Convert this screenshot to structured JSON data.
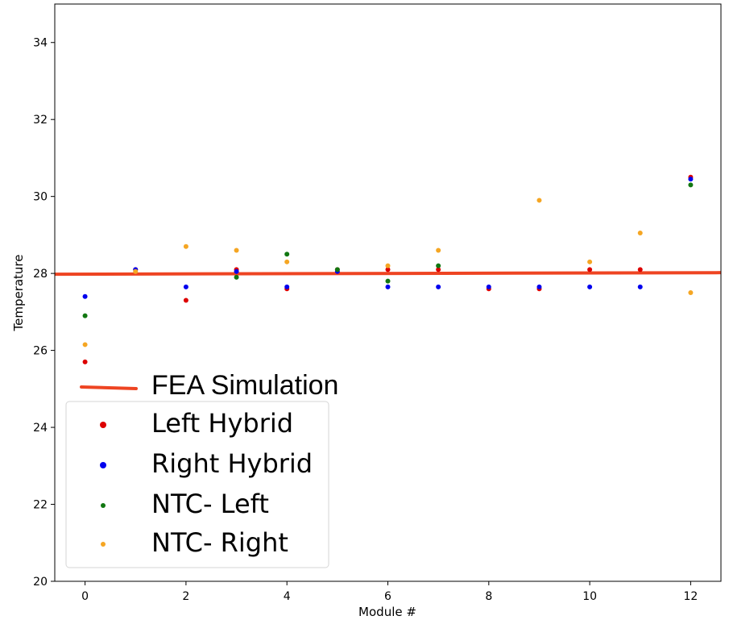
{
  "chart_data": {
    "type": "scatter",
    "xlabel": "Module #",
    "ylabel": "Temperature",
    "xlim": [
      -0.6,
      12.6
    ],
    "ylim": [
      20,
      35
    ],
    "xticks": [
      0,
      2,
      4,
      6,
      8,
      10,
      12
    ],
    "yticks": [
      20,
      22,
      24,
      26,
      28,
      30,
      32,
      34
    ],
    "grid": false,
    "legend_position": "lower-left",
    "line": {
      "name": "FEA Simulation",
      "color": "#ee4422",
      "x": [
        -0.6,
        12.6
      ],
      "y": [
        27.98,
        28.02
      ]
    },
    "series": [
      {
        "name": "Left Hybrid",
        "color": "#dd0000",
        "x": [
          0,
          1,
          2,
          3,
          4,
          5,
          6,
          7,
          8,
          9,
          10,
          11,
          12
        ],
        "y": [
          25.7,
          28.1,
          27.3,
          28.1,
          27.6,
          28.1,
          28.1,
          28.1,
          27.6,
          27.6,
          28.1,
          28.1,
          30.5
        ]
      },
      {
        "name": "Right Hybrid",
        "color": "#0000ee",
        "x": [
          0,
          1,
          2,
          3,
          4,
          5,
          6,
          7,
          8,
          9,
          10,
          11,
          12
        ],
        "y": [
          27.4,
          28.1,
          27.65,
          28.05,
          27.65,
          28.05,
          27.65,
          27.65,
          27.65,
          27.65,
          27.65,
          27.65,
          30.45
        ]
      },
      {
        "name": "NTC- Left",
        "color": "#117711",
        "x": [
          0,
          3,
          4,
          5,
          6,
          7,
          12
        ],
        "y": [
          26.9,
          27.9,
          28.5,
          28.1,
          27.8,
          28.2,
          30.3
        ]
      },
      {
        "name": "NTC- Right",
        "color": "#f5a623",
        "x": [
          0,
          1,
          2,
          3,
          4,
          6,
          7,
          9,
          10,
          11,
          12
        ],
        "y": [
          26.15,
          28.05,
          28.7,
          28.6,
          28.3,
          28.2,
          28.6,
          29.9,
          28.3,
          29.05,
          27.5
        ]
      }
    ]
  }
}
